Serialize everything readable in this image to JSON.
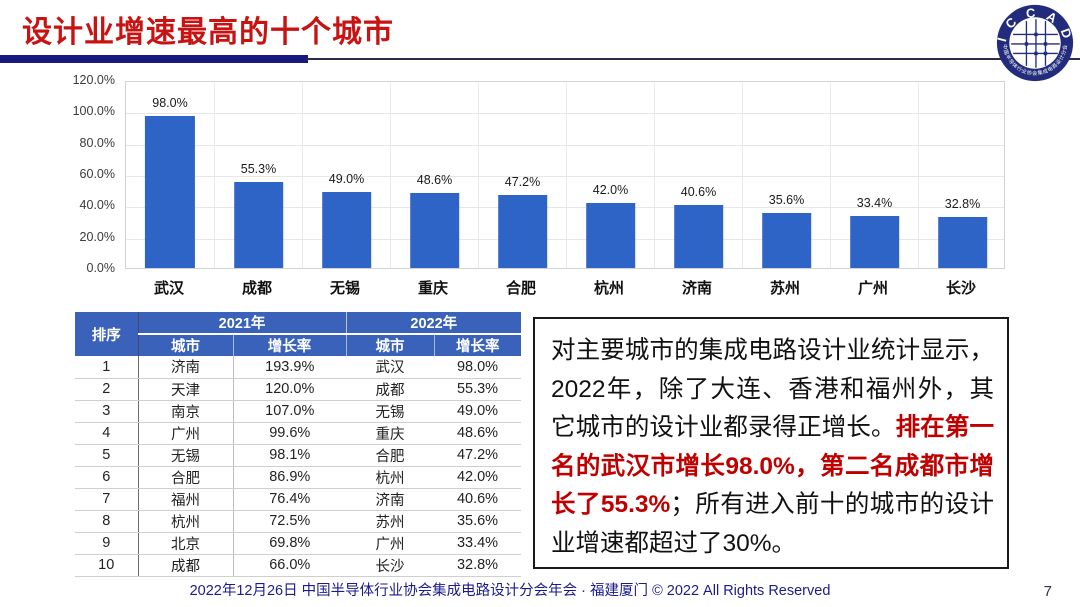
{
  "header": {
    "title": "设计业增速最高的十个城市"
  },
  "logo": {
    "acronym": "I C C A D",
    "ring_text": "中国半导体行业协会集成电路设计分会"
  },
  "chart_data": {
    "type": "bar",
    "title": "",
    "xlabel": "",
    "ylabel": "",
    "categories": [
      "武汉",
      "成都",
      "无锡",
      "重庆",
      "合肥",
      "杭州",
      "济南",
      "苏州",
      "广州",
      "长沙"
    ],
    "values": [
      98.0,
      55.3,
      49.0,
      48.6,
      47.2,
      42.0,
      40.6,
      35.6,
      33.4,
      32.8
    ],
    "value_labels": [
      "98.0%",
      "55.3%",
      "49.0%",
      "48.6%",
      "47.2%",
      "42.0%",
      "40.6%",
      "35.6%",
      "33.4%",
      "32.8%"
    ],
    "ylim": [
      0,
      120
    ],
    "ytick_values": [
      0,
      20,
      40,
      60,
      80,
      100,
      120
    ],
    "ytick_labels": [
      "0.0%",
      "20.0%",
      "40.0%",
      "60.0%",
      "80.0%",
      "100.0%",
      "120.0%"
    ],
    "grid": true,
    "legend": false,
    "bar_color": "#2e64c6"
  },
  "table": {
    "headers": {
      "rank": "排序",
      "y2021": "2021年",
      "y2022": "2022年"
    },
    "sub_headers": [
      "城市",
      "增长率",
      "城市",
      "增长率"
    ],
    "rows": [
      [
        "1",
        "济南",
        "193.9%",
        "武汉",
        "98.0%"
      ],
      [
        "2",
        "天津",
        "120.0%",
        "成都",
        "55.3%"
      ],
      [
        "3",
        "南京",
        "107.0%",
        "无锡",
        "49.0%"
      ],
      [
        "4",
        "广州",
        "99.6%",
        "重庆",
        "48.6%"
      ],
      [
        "5",
        "无锡",
        "98.1%",
        "合肥",
        "47.2%"
      ],
      [
        "6",
        "合肥",
        "86.9%",
        "杭州",
        "42.0%"
      ],
      [
        "7",
        "福州",
        "76.4%",
        "济南",
        "40.6%"
      ],
      [
        "8",
        "杭州",
        "72.5%",
        "苏州",
        "35.6%"
      ],
      [
        "9",
        "北京",
        "69.8%",
        "广州",
        "33.4%"
      ],
      [
        "10",
        "成都",
        "66.0%",
        "长沙",
        "32.8%"
      ]
    ]
  },
  "note": {
    "black1": "对主要城市的集成电路设计业统计显示，2022年，除了大连、香港和福州外，其它城市的设计业都录得正增长。",
    "red": "排在第一名的武汉市增长98.0%，第二名成都市增长了55.3%",
    "black2": "；所有进入前十的城市的设计业增速都超过了30%。"
  },
  "footer": {
    "text": "2022年12月26日 中国半导体行业协会集成电路设计分会年会 · 福建厦门 © 2022 All Rights Reserved",
    "page": "7"
  },
  "colors": {
    "title_red": "#c81313",
    "accent_navy": "#18187e",
    "table_header_blue": "#3a62ba",
    "bar_blue": "#2e64c6",
    "note_red": "#c00000",
    "footer_blue": "#1b1b8e"
  }
}
